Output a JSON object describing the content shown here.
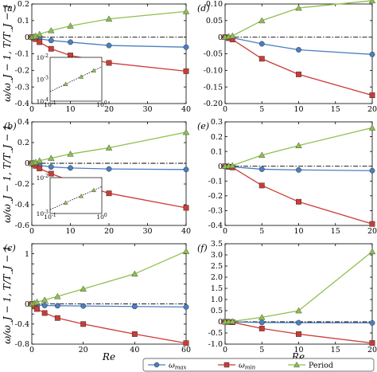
{
  "figure": {
    "ylabel": "ω/ω_J − 1, T/T_J − 1",
    "xlabel": "Re",
    "legend": {
      "placement": "bottom-right",
      "entries": [
        {
          "series": "omega_max",
          "label": "ωmax",
          "sym": "ω",
          "sub": "max",
          "color": "#4a7fc1",
          "marker": "circle"
        },
        {
          "series": "omega_min",
          "label": "ωmin",
          "sym": "ω",
          "sub": "min",
          "color": "#cc3b36",
          "marker": "square"
        },
        {
          "series": "period",
          "label": "Period",
          "color": "#8fbf4f",
          "marker": "triangle"
        }
      ]
    }
  },
  "chart_data": [
    {
      "panel": "(a)",
      "type": "line",
      "xlim": [
        0,
        40
      ],
      "ylim": [
        -0.4,
        0.2
      ],
      "xticks": [
        0,
        10,
        20,
        30,
        40
      ],
      "yticks": [
        0.2,
        0.1,
        0,
        -0.1,
        -0.2,
        -0.3,
        -0.4
      ],
      "ytick_labels": [
        "0.2",
        "0.1",
        "0",
        "-0.1",
        "-0.2",
        "-0.3",
        "-0.4"
      ],
      "x": [
        0,
        0.5,
        1,
        2,
        5,
        10,
        20,
        40
      ],
      "series": [
        {
          "name": "ωmax",
          "values": [
            0,
            -0.002,
            -0.005,
            -0.01,
            -0.02,
            -0.03,
            -0.05,
            -0.06
          ]
        },
        {
          "name": "ωmin",
          "values": [
            0,
            -0.005,
            -0.012,
            -0.03,
            -0.07,
            -0.11,
            -0.155,
            -0.205
          ]
        },
        {
          "name": "Period",
          "values": [
            0,
            0.003,
            0.008,
            0.018,
            0.04,
            0.068,
            0.11,
            0.155
          ]
        }
      ],
      "inset": {
        "xscale": "log",
        "yscale": "log",
        "xlim": [
          0.1,
          1
        ],
        "ylim": [
          0.0001,
          0.01
        ],
        "xtick_labels": [
          "10^-1",
          "10^0"
        ],
        "ytick_labels": [
          "10^-2",
          "10^-3",
          "10^-4"
        ],
        "x": [
          0.2,
          0.4,
          0.7
        ],
        "values": [
          0.0006,
          0.0013,
          0.0025
        ]
      }
    },
    {
      "panel": "(b)",
      "type": "line",
      "xlim": [
        0,
        40
      ],
      "ylim": [
        -0.6,
        0.4
      ],
      "xticks": [
        0,
        10,
        20,
        30,
        40
      ],
      "yticks": [
        0.4,
        0.2,
        0,
        -0.2,
        -0.4,
        -0.6
      ],
      "ytick_labels": [
        "0.4",
        "0.2",
        "0",
        "-0.2",
        "-0.4",
        "-0.6"
      ],
      "x": [
        0,
        0.5,
        1,
        2,
        5,
        10,
        20,
        40
      ],
      "series": [
        {
          "name": "ωmax",
          "values": [
            0,
            -0.005,
            -0.01,
            -0.02,
            -0.035,
            -0.045,
            -0.055,
            -0.06
          ]
        },
        {
          "name": "ωmin",
          "values": [
            0,
            -0.01,
            -0.025,
            -0.05,
            -0.1,
            -0.17,
            -0.29,
            -0.43
          ]
        },
        {
          "name": "Period",
          "values": [
            0,
            0.005,
            0.012,
            0.025,
            0.05,
            0.09,
            0.15,
            0.3
          ]
        }
      ],
      "inset": {
        "xscale": "log",
        "yscale": "log",
        "xlim": [
          0.1,
          1
        ],
        "ylim": [
          0.0003,
          0.03
        ],
        "xtick_labels": [
          "10^-1",
          "10^0"
        ],
        "ytick_labels": [
          "10^-2",
          "10^-3"
        ],
        "x": [
          0.2,
          0.4,
          0.7
        ],
        "values": [
          0.0012,
          0.0028,
          0.006
        ]
      }
    },
    {
      "panel": "(c)",
      "type": "line",
      "xlim": [
        0,
        60
      ],
      "ylim": [
        -0.8,
        1.2
      ],
      "xticks": [
        0,
        20,
        40,
        60
      ],
      "yticks": [
        1.2,
        1,
        0.8,
        0.6,
        0.4,
        0.2,
        0,
        -0.2,
        -0.4,
        -0.6,
        -0.8
      ],
      "ytick_labels": [
        "",
        "1",
        "",
        "",
        "",
        "",
        "0",
        "",
        "-0.4",
        "",
        "-0.8"
      ],
      "x": [
        0,
        1,
        2,
        5,
        10,
        20,
        40,
        60
      ],
      "series": [
        {
          "name": "ωmax",
          "values": [
            0,
            -0.01,
            -0.02,
            -0.03,
            -0.035,
            -0.04,
            -0.05,
            -0.06
          ]
        },
        {
          "name": "ωmin",
          "values": [
            0,
            -0.05,
            -0.1,
            -0.18,
            -0.28,
            -0.4,
            -0.6,
            -0.78
          ]
        },
        {
          "name": "Period",
          "values": [
            0,
            0.02,
            0.04,
            0.08,
            0.15,
            0.3,
            0.6,
            1.05
          ]
        }
      ]
    },
    {
      "panel": "(d)",
      "type": "line",
      "xlim": [
        0,
        20
      ],
      "ylim": [
        -0.2,
        0.1
      ],
      "xticks": [
        0,
        5,
        10,
        15,
        20
      ],
      "yticks": [
        0.1,
        0.05,
        0,
        -0.05,
        -0.1,
        -0.15,
        -0.2
      ],
      "ytick_labels": [
        "0.10",
        "0.05",
        "0",
        "-0.05",
        "-0.10",
        "-0.15",
        "-0.20"
      ],
      "x": [
        0,
        0.5,
        1,
        5,
        10,
        20
      ],
      "series": [
        {
          "name": "ωmax",
          "values": [
            0,
            -0.001,
            -0.002,
            -0.02,
            -0.038,
            -0.052
          ]
        },
        {
          "name": "ωmin",
          "values": [
            0,
            -0.003,
            -0.007,
            -0.065,
            -0.112,
            -0.175
          ]
        },
        {
          "name": "Period",
          "values": [
            0,
            0.002,
            0.004,
            0.05,
            0.088,
            0.11
          ]
        }
      ]
    },
    {
      "panel": "(e)",
      "type": "line",
      "xlim": [
        0,
        20
      ],
      "ylim": [
        -0.4,
        0.3
      ],
      "xticks": [
        0,
        5,
        10,
        15,
        20
      ],
      "yticks": [
        0.3,
        0.2,
        0.1,
        0,
        -0.1,
        -0.2,
        -0.3,
        -0.4
      ],
      "ytick_labels": [
        "0.3",
        "0.2",
        "0.1",
        "0",
        "-0.1",
        "-0.2",
        "-0.3",
        "-0.4"
      ],
      "x": [
        0,
        0.5,
        1,
        5,
        10,
        20
      ],
      "series": [
        {
          "name": "ωmax",
          "values": [
            0,
            -0.002,
            -0.004,
            -0.02,
            -0.025,
            -0.03
          ]
        },
        {
          "name": "ωmin",
          "values": [
            0,
            -0.004,
            -0.008,
            -0.13,
            -0.24,
            -0.39
          ]
        },
        {
          "name": "Period",
          "values": [
            0,
            0.002,
            0.005,
            0.075,
            0.14,
            0.26
          ]
        }
      ]
    },
    {
      "panel": "(f)",
      "type": "line",
      "xlim": [
        0,
        20
      ],
      "ylim": [
        -1,
        3.5
      ],
      "xticks": [
        0,
        5,
        10,
        15,
        20
      ],
      "yticks": [
        3.5,
        3,
        2.5,
        2,
        1.5,
        1,
        0.5,
        0,
        -0.5,
        -1
      ],
      "ytick_labels": [
        "3.5",
        "3.0",
        "2.5",
        "2.0",
        "1.5",
        "1.0",
        "0.5",
        "0",
        "-0.5",
        "-1.0"
      ],
      "x": [
        0,
        0.5,
        1,
        5,
        10,
        20
      ],
      "series": [
        {
          "name": "ωmax",
          "values": [
            0,
            -0.005,
            -0.01,
            -0.03,
            -0.04,
            -0.05
          ]
        },
        {
          "name": "ωmin",
          "values": [
            0,
            -0.01,
            -0.02,
            -0.3,
            -0.55,
            -0.95
          ]
        },
        {
          "name": "Period",
          "values": [
            0,
            0.01,
            0.02,
            0.2,
            0.5,
            3.15
          ]
        }
      ]
    }
  ]
}
